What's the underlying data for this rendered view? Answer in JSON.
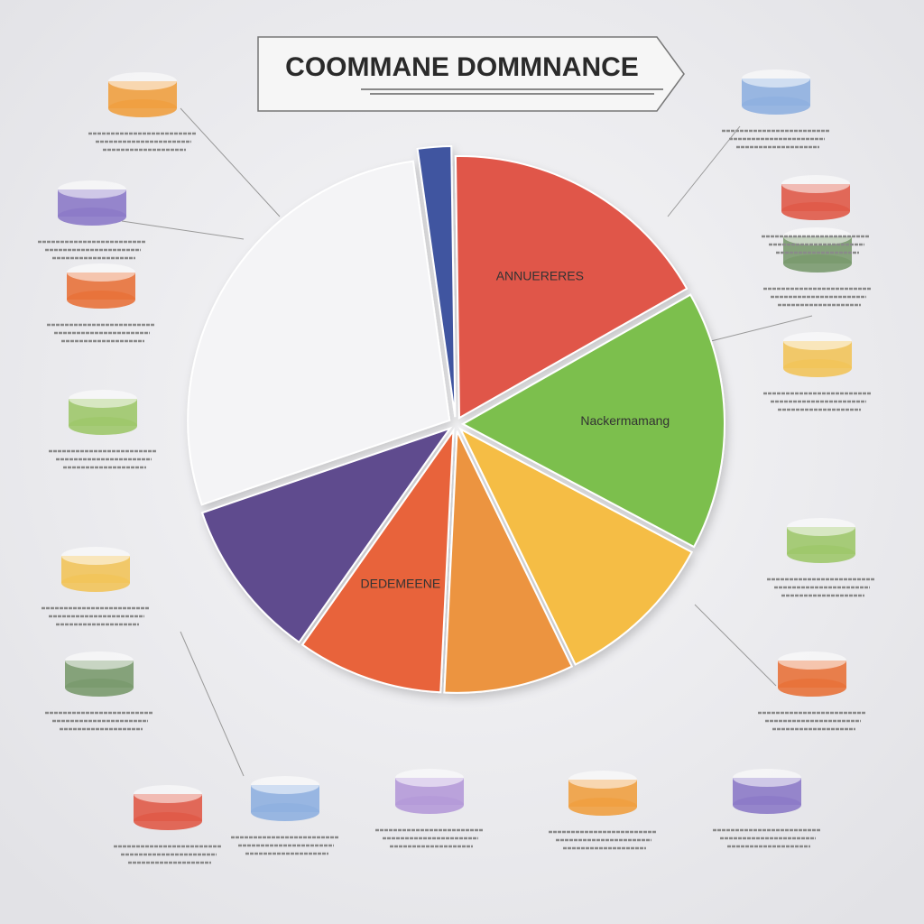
{
  "chart_data": {
    "type": "pie",
    "title": "COOMMANE DOMMNANCE",
    "categories": [
      null,
      "ANNUERERES",
      "Nackermamang",
      null,
      null,
      "DEDEMEENE",
      null,
      null
    ],
    "values": [
      2,
      17,
      16,
      10,
      8,
      9,
      10,
      28
    ],
    "colors": [
      "#3f55a0",
      "#e0574a",
      "#7cbf4e",
      "#f5bd45",
      "#ec9440",
      "#e8643a",
      "#5e4b8e",
      "#f4f4f6"
    ]
  }
}
